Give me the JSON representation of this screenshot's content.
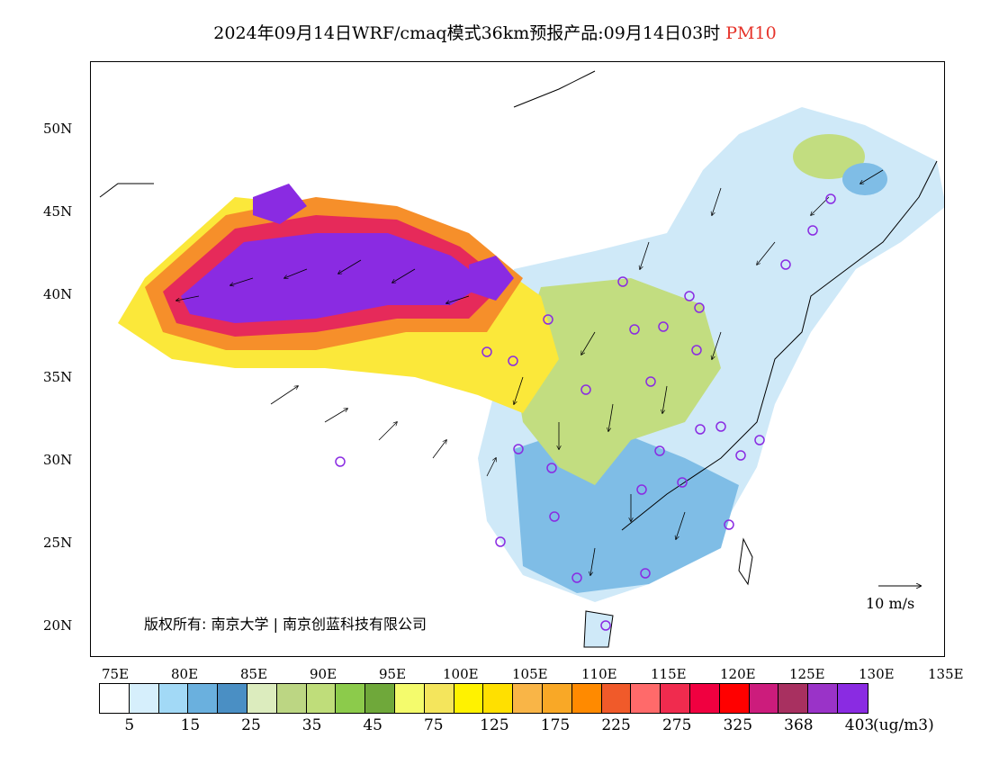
{
  "title": {
    "main": "2024年09月14日WRF/cmaq模式36km预报产品:09月14日03时",
    "product": "PM10"
  },
  "lat_labels": [
    "50N",
    "45N",
    "40N",
    "35N",
    "30N",
    "25N",
    "20N"
  ],
  "lon_labels": [
    "75E",
    "80E",
    "85E",
    "90E",
    "95E",
    "100E",
    "105E",
    "110E",
    "115E",
    "120E",
    "125E",
    "130E",
    "135E"
  ],
  "copyright": "版权所有: 南京大学 | 南京创蓝科技有限公司",
  "wind_reference": "10 m/s",
  "colorbar": {
    "colors": [
      "#ffffff",
      "#d6effc",
      "#a2d9f6",
      "#6ab0de",
      "#4a8fc4",
      "#dcecbe",
      "#bcd683",
      "#bfdd7a",
      "#8ccb4b",
      "#6fa83a",
      "#f4fb6c",
      "#f4e55c",
      "#fff200",
      "#ffe000",
      "#f9b547",
      "#f9a826",
      "#ff8a00",
      "#f05a2a",
      "#ff6a6a",
      "#f02b4e",
      "#f00040",
      "#ff0000",
      "#cc1c7c",
      "#a83060",
      "#9a33c8",
      "#8a2be2"
    ],
    "labels": [
      "5",
      "15",
      "25",
      "35",
      "45",
      "75",
      "125",
      "175",
      "225",
      "275",
      "325",
      "368",
      "403"
    ],
    "unit": "(ug/m3)"
  }
}
